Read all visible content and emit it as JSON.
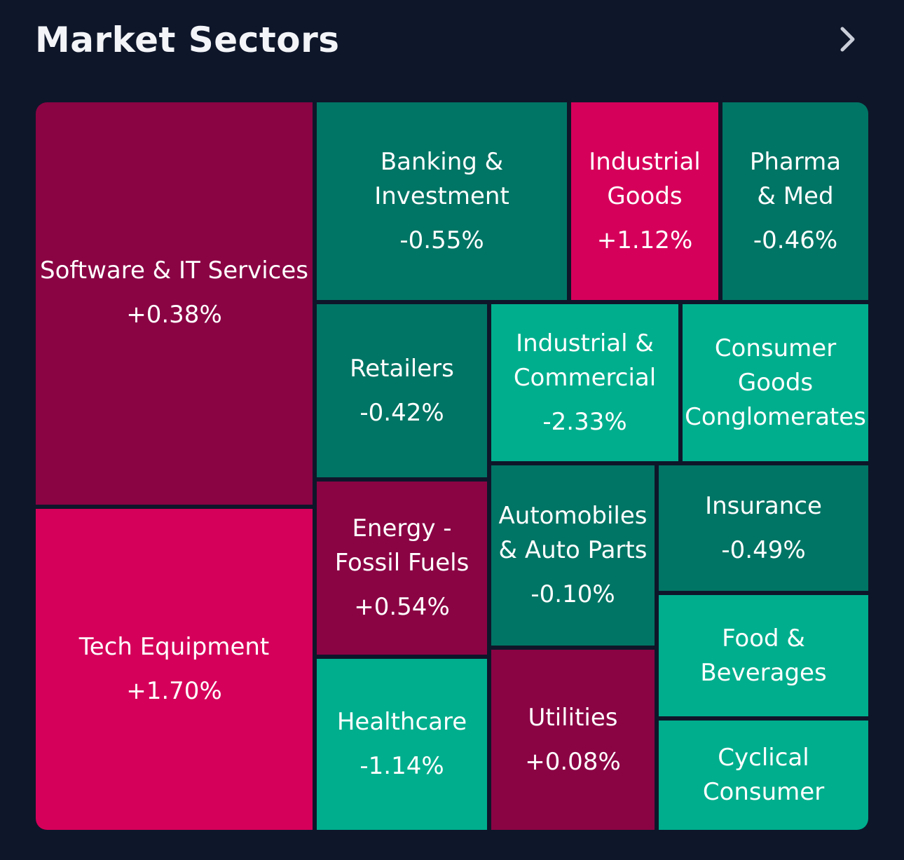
{
  "header": {
    "title": "Market Sectors",
    "chevron_icon": "chevron-right-icon"
  },
  "colors": {
    "background": "#0e162a",
    "dark_red": "#8a0444",
    "bright_red": "#d5005a",
    "dark_green": "#017565",
    "bright_green": "#00ae8d"
  },
  "sectors": [
    {
      "name": "Software & IT Services",
      "change": "+0.38%",
      "color": "#8a0444"
    },
    {
      "name": "Tech Equipment",
      "change": "+1.70%",
      "color": "#d5005a"
    },
    {
      "name": "Banking &\nInvestment",
      "change": "-0.55%",
      "color": "#017565"
    },
    {
      "name": "Industrial\nGoods",
      "change": "+1.12%",
      "color": "#d5005a"
    },
    {
      "name": "Pharma\n& Med",
      "change": "-0.46%",
      "color": "#017565"
    },
    {
      "name": "Retailers",
      "change": "-0.42%",
      "color": "#017565"
    },
    {
      "name": "Industrial &\nCommercial",
      "change": "-2.33%",
      "color": "#00ae8d"
    },
    {
      "name": "Consumer\nGoods\nConglomerates",
      "change": "",
      "color": "#00ae8d"
    },
    {
      "name": "Energy -\nFossil Fuels",
      "change": "+0.54%",
      "color": "#8a0444"
    },
    {
      "name": "Automobiles\n& Auto Parts",
      "change": "-0.10%",
      "color": "#017565"
    },
    {
      "name": "Insurance",
      "change": "-0.49%",
      "color": "#017565"
    },
    {
      "name": "Food &\nBeverages",
      "change": "",
      "color": "#00ae8d"
    },
    {
      "name": "Healthcare",
      "change": "-1.14%",
      "color": "#00ae8d"
    },
    {
      "name": "Utilities",
      "change": "+0.08%",
      "color": "#8a0444"
    },
    {
      "name": "Cyclical\nConsumer",
      "change": "",
      "color": "#00ae8d"
    }
  ]
}
